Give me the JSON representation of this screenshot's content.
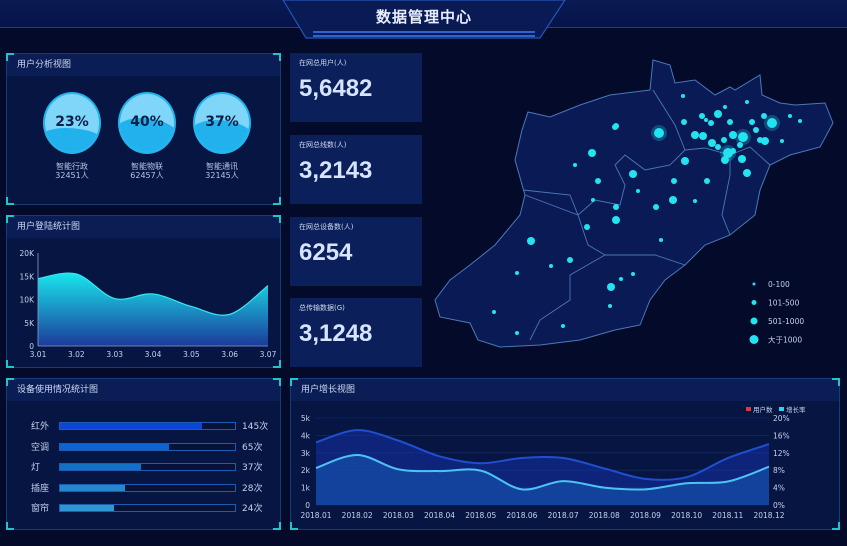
{
  "header": {
    "title": "数据管理中心"
  },
  "user_analysis": {
    "title": "用户分析视图",
    "gauges": [
      {
        "percent": 23,
        "label": "23%",
        "name": "智能行政",
        "count": "32451人"
      },
      {
        "percent": 40,
        "label": "40%",
        "name": "智能物联",
        "count": "62457人"
      },
      {
        "percent": 37,
        "label": "37%",
        "name": "智能通讯",
        "count": "32145人"
      }
    ]
  },
  "stats": [
    {
      "label": "在网总用户(人)",
      "value": "5,6482"
    },
    {
      "label": "在网总线数(人)",
      "value": "3,2143"
    },
    {
      "label": "在网总设备数(人)",
      "value": "6254"
    },
    {
      "label": "总传输数据(G)",
      "value": "3,1248"
    }
  ],
  "map": {
    "legend": [
      "0-100",
      "101-500",
      "501-1000",
      "大于1000"
    ],
    "dot_color": "#22e4f0"
  },
  "chart_data": [
    {
      "type": "area",
      "title": "用户登陆统计图",
      "categories": [
        "3.01",
        "3.02",
        "3.03",
        "3.04",
        "3.05",
        "3.06",
        "3.07"
      ],
      "values": [
        14500,
        15500,
        10200,
        11200,
        8500,
        6800,
        13000
      ],
      "ylim": [
        0,
        20000
      ],
      "yticks": [
        "0",
        "5K",
        "10K",
        "15K",
        "20K"
      ],
      "grid": false
    },
    {
      "type": "bar",
      "orientation": "horizontal",
      "title": "设备使用情况统计图",
      "categories": [
        "红外",
        "空调",
        "灯",
        "插座",
        "窗帘"
      ],
      "values": [
        145,
        65,
        37,
        28,
        24
      ],
      "value_labels": [
        "145次",
        "65次",
        "37次",
        "28次",
        "24次"
      ],
      "fill_fraction": [
        0.81,
        0.62,
        0.46,
        0.37,
        0.31
      ],
      "colors": [
        "#0b46d8",
        "#0d64cf",
        "#1270c7",
        "#2289cf",
        "#2d97d4"
      ]
    },
    {
      "type": "area",
      "title": "用户增长视图",
      "categories": [
        "2018.01",
        "2018.02",
        "2018.03",
        "2018.04",
        "2018.05",
        "2018.06",
        "2018.07",
        "2018.08",
        "2018.09",
        "2018.10",
        "2018.11",
        "2018.12"
      ],
      "series": [
        {
          "name": "用户数",
          "axis": "left",
          "legend_color": "#e8304a",
          "line_color": "#1f4fd0",
          "values": [
            3600,
            4300,
            3700,
            2800,
            2400,
            2700,
            2700,
            2100,
            1500,
            1600,
            2700,
            3500
          ]
        },
        {
          "name": "增长率",
          "axis": "right",
          "legend_color": "#2fd0f0",
          "line_color": "#4cc3f5",
          "values": [
            8.5,
            11.5,
            8.2,
            7.8,
            7.9,
            3.6,
            5.5,
            4.0,
            3.6,
            5.0,
            5.4,
            8.8
          ]
        }
      ],
      "ylim_left": [
        0,
        5000
      ],
      "yticks_left": [
        "0",
        "1k",
        "2k",
        "3k",
        "4k",
        "5k"
      ],
      "ylim_right": [
        0,
        20
      ],
      "yticks_right": [
        "0%",
        "4%",
        "8%",
        "12%",
        "16%",
        "20%"
      ],
      "legend": "top-right",
      "grid": true
    }
  ]
}
